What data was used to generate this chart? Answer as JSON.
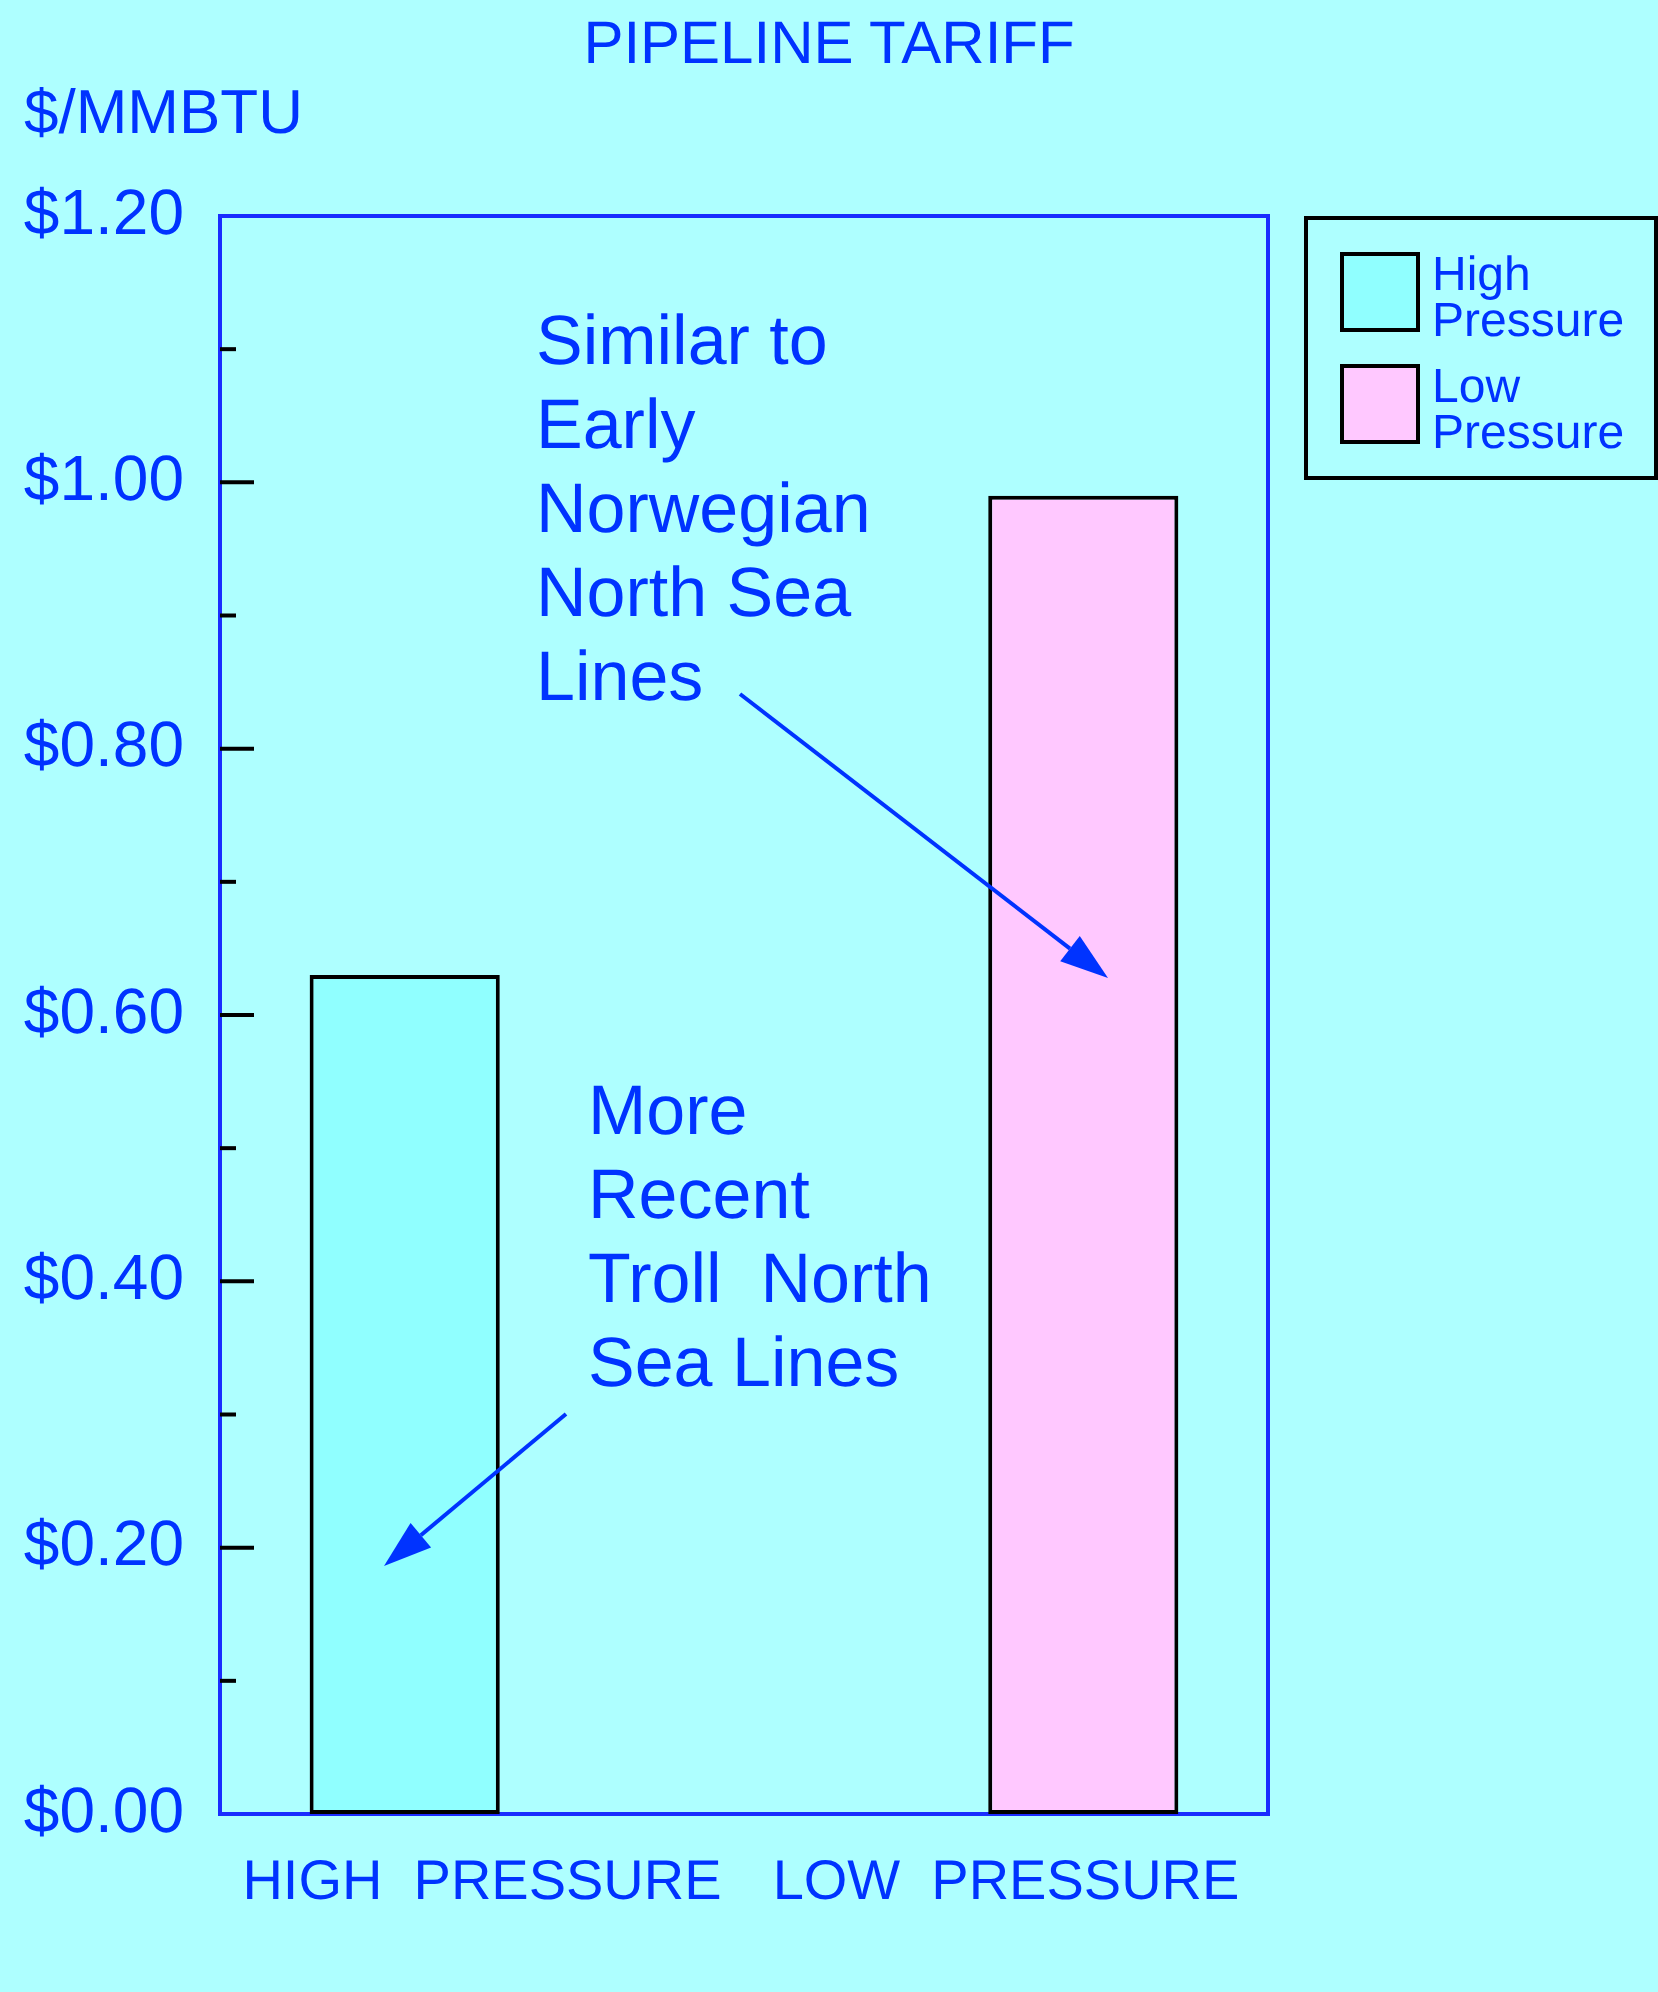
{
  "chart_data": {
    "type": "bar",
    "title": "PIPELINE TARIFF",
    "ylabel": "$/MMBTU",
    "categories": [
      "HIGH  PRESSURE",
      "LOW  PRESSURE"
    ],
    "series": [
      {
        "name": "High Pressure",
        "color": "#90ffff",
        "values": [
          0.63,
          null
        ]
      },
      {
        "name": "Low Pressure",
        "color": "#ffc8ff",
        "values": [
          null,
          0.99
        ]
      }
    ],
    "ylim": [
      0,
      1.2
    ],
    "yticks": [
      {
        "value": 0,
        "label": "$0.00"
      },
      {
        "value": 0.1,
        "label": null
      },
      {
        "value": 0.2,
        "label": "$0.20"
      },
      {
        "value": 0.3,
        "label": null
      },
      {
        "value": 0.4,
        "label": "$0.40"
      },
      {
        "value": 0.5,
        "label": null
      },
      {
        "value": 0.6,
        "label": "$0.60"
      },
      {
        "value": 0.7,
        "label": null
      },
      {
        "value": 0.8,
        "label": "$0.80"
      },
      {
        "value": 0.9,
        "label": null
      },
      {
        "value": 1,
        "label": "$1.00"
      },
      {
        "value": 1.1,
        "label": null
      },
      {
        "value": 1.2,
        "label": "$1.20"
      }
    ],
    "grid": false,
    "legend": "top right",
    "annotations": [
      "Similar to Early Norwegian North Sea Lines",
      "More Recent Troll  North Sea Lines"
    ]
  }
}
